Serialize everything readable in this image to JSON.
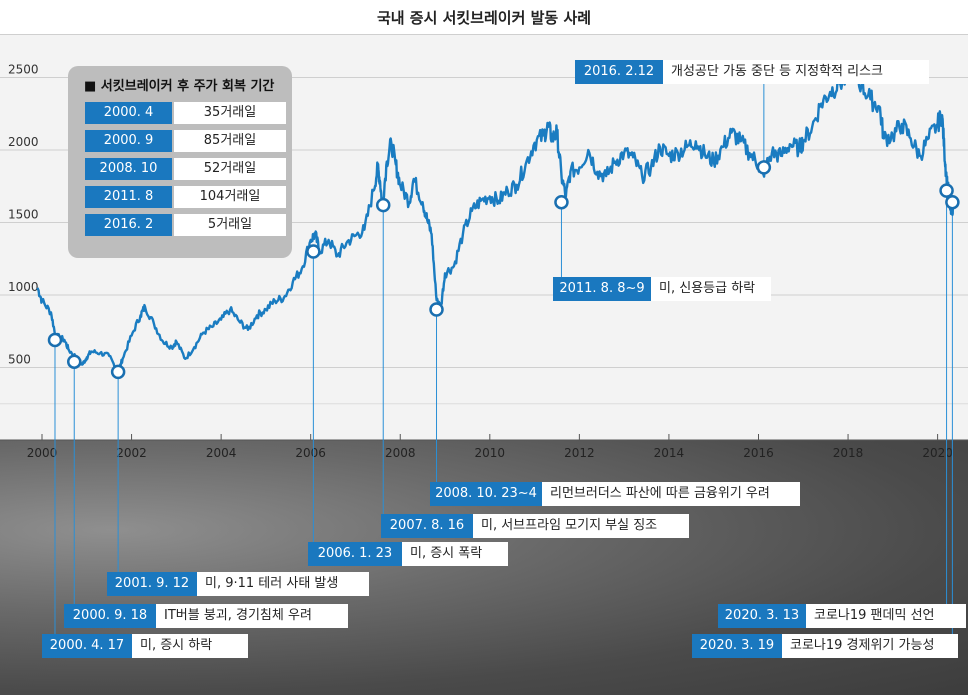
{
  "header": {
    "title": "국내 증시 서킷브레이커 발동 사례"
  },
  "recovery": {
    "title": "■ 서킷브레이커 후 주가 회복 기간",
    "rows": [
      {
        "date": "2000. 4",
        "days": "35거래일"
      },
      {
        "date": "2000. 9",
        "days": "85거래일"
      },
      {
        "date": "2008. 10",
        "days": "52거래일"
      },
      {
        "date": "2011. 8",
        "days": "104거래일"
      },
      {
        "date": "2016. 2",
        "days": "5거래일"
      }
    ]
  },
  "events": [
    {
      "date": "2016. 2.12",
      "desc": "개성공단 가동 중단 등 지정학적 리스크"
    },
    {
      "date": "2011. 8. 8~9",
      "desc": "미, 신용등급 하락"
    },
    {
      "date": "2008. 10. 23~4",
      "desc": "리먼브러더스 파산에 따른 금융위기 우려"
    },
    {
      "date": "2007. 8. 16",
      "desc": "미, 서브프라임 모기지 부실 징조"
    },
    {
      "date": "2006. 1. 23",
      "desc": "미, 증시 폭락"
    },
    {
      "date": "2001. 9. 12",
      "desc": "미, 9·11 테러 사태 발생"
    },
    {
      "date": "2000. 9. 18",
      "desc": "IT버블 붕괴, 경기침체 우려"
    },
    {
      "date": "2000. 4. 17",
      "desc": "미, 증시 하락"
    },
    {
      "date": "2020. 3. 13",
      "desc": "코로나19 팬데믹 선언"
    },
    {
      "date": "2020. 3. 19",
      "desc": "코로나19 경제위기 가능성"
    }
  ],
  "chart_data": {
    "type": "line",
    "title": "국내 증시 서킷브레이커 발동 사례",
    "xlabel": "",
    "ylabel": "",
    "xlim": [
      2000,
      2020.5
    ],
    "ylim": [
      0,
      2800
    ],
    "x_ticks": [
      "2000",
      "2002",
      "2004",
      "2006",
      "2008",
      "2010",
      "2012",
      "2014",
      "2016",
      "2018",
      "2020"
    ],
    "y_ticks": [
      "500",
      "1000",
      "1500",
      "2000",
      "2500"
    ],
    "grid": "horizontal",
    "series": [
      {
        "name": "",
        "color": "#1a7cc1",
        "points": [
          [
            1999.9,
            1050
          ],
          [
            2000.0,
            960
          ],
          [
            2000.2,
            880
          ],
          [
            2000.3,
            720
          ],
          [
            2000.5,
            690
          ],
          [
            2000.6,
            620
          ],
          [
            2000.8,
            560
          ],
          [
            2000.9,
            520
          ],
          [
            2001.0,
            570
          ],
          [
            2001.1,
            610
          ],
          [
            2001.3,
            600
          ],
          [
            2001.5,
            580
          ],
          [
            2001.7,
            470
          ],
          [
            2001.8,
            560
          ],
          [
            2002.0,
            720
          ],
          [
            2002.2,
            860
          ],
          [
            2002.3,
            920
          ],
          [
            2002.5,
            800
          ],
          [
            2002.7,
            680
          ],
          [
            2002.9,
            640
          ],
          [
            2003.0,
            680
          ],
          [
            2003.2,
            560
          ],
          [
            2003.4,
            640
          ],
          [
            2003.6,
            740
          ],
          [
            2003.8,
            780
          ],
          [
            2004.0,
            830
          ],
          [
            2004.2,
            900
          ],
          [
            2004.4,
            820
          ],
          [
            2004.6,
            760
          ],
          [
            2004.8,
            860
          ],
          [
            2005.0,
            900
          ],
          [
            2005.2,
            960
          ],
          [
            2005.4,
            980
          ],
          [
            2005.6,
            1090
          ],
          [
            2005.8,
            1180
          ],
          [
            2006.0,
            1380
          ],
          [
            2006.1,
            1420
          ],
          [
            2006.2,
            1300
          ],
          [
            2006.4,
            1380
          ],
          [
            2006.6,
            1270
          ],
          [
            2006.8,
            1360
          ],
          [
            2007.0,
            1410
          ],
          [
            2007.2,
            1450
          ],
          [
            2007.4,
            1720
          ],
          [
            2007.5,
            1880
          ],
          [
            2007.55,
            1780
          ],
          [
            2007.6,
            1620
          ],
          [
            2007.7,
            1920
          ],
          [
            2007.8,
            2050
          ],
          [
            2007.9,
            1900
          ],
          [
            2008.0,
            1760
          ],
          [
            2008.2,
            1640
          ],
          [
            2008.3,
            1800
          ],
          [
            2008.5,
            1640
          ],
          [
            2008.6,
            1520
          ],
          [
            2008.7,
            1420
          ],
          [
            2008.8,
            1000
          ],
          [
            2008.9,
            900
          ],
          [
            2009.0,
            1150
          ],
          [
            2009.2,
            1200
          ],
          [
            2009.4,
            1420
          ],
          [
            2009.6,
            1580
          ],
          [
            2009.8,
            1650
          ],
          [
            2010.0,
            1680
          ],
          [
            2010.2,
            1650
          ],
          [
            2010.4,
            1720
          ],
          [
            2010.6,
            1760
          ],
          [
            2010.8,
            1900
          ],
          [
            2011.0,
            2050
          ],
          [
            2011.2,
            2100
          ],
          [
            2011.3,
            2160
          ],
          [
            2011.4,
            2080
          ],
          [
            2011.5,
            2120
          ],
          [
            2011.6,
            1820
          ],
          [
            2011.7,
            1680
          ],
          [
            2011.8,
            1850
          ],
          [
            2012.0,
            1880
          ],
          [
            2012.2,
            2000
          ],
          [
            2012.4,
            1850
          ],
          [
            2012.6,
            1820
          ],
          [
            2012.8,
            1920
          ],
          [
            2013.0,
            1980
          ],
          [
            2013.2,
            1950
          ],
          [
            2013.4,
            1820
          ],
          [
            2013.6,
            1880
          ],
          [
            2013.8,
            2020
          ],
          [
            2014.0,
            1960
          ],
          [
            2014.2,
            1980
          ],
          [
            2014.4,
            2020
          ],
          [
            2014.6,
            2060
          ],
          [
            2014.8,
            1970
          ],
          [
            2015.0,
            1920
          ],
          [
            2015.2,
            2020
          ],
          [
            2015.4,
            2120
          ],
          [
            2015.6,
            2060
          ],
          [
            2015.8,
            1980
          ],
          [
            2016.0,
            1900
          ],
          [
            2016.1,
            1840
          ],
          [
            2016.3,
            1980
          ],
          [
            2016.5,
            1960
          ],
          [
            2016.7,
            2040
          ],
          [
            2016.9,
            2010
          ],
          [
            2017.0,
            2060
          ],
          [
            2017.2,
            2160
          ],
          [
            2017.4,
            2320
          ],
          [
            2017.6,
            2400
          ],
          [
            2017.8,
            2460
          ],
          [
            2018.0,
            2500
          ],
          [
            2018.1,
            2560
          ],
          [
            2018.3,
            2450
          ],
          [
            2018.5,
            2350
          ],
          [
            2018.7,
            2300
          ],
          [
            2018.8,
            2080
          ],
          [
            2019.0,
            2100
          ],
          [
            2019.2,
            2180
          ],
          [
            2019.4,
            2080
          ],
          [
            2019.6,
            1960
          ],
          [
            2019.8,
            2080
          ],
          [
            2020.0,
            2180
          ],
          [
            2020.1,
            2240
          ],
          [
            2020.15,
            2000
          ],
          [
            2020.2,
            1800
          ],
          [
            2020.25,
            1700
          ],
          [
            2020.3,
            1560
          ],
          [
            2020.35,
            1620
          ]
        ]
      }
    ],
    "markers": [
      {
        "x": 2000.29,
        "y": 690
      },
      {
        "x": 2000.72,
        "y": 540
      },
      {
        "x": 2001.7,
        "y": 470
      },
      {
        "x": 2006.06,
        "y": 1300
      },
      {
        "x": 2007.62,
        "y": 1620
      },
      {
        "x": 2008.81,
        "y": 900
      },
      {
        "x": 2011.6,
        "y": 1640
      },
      {
        "x": 2016.12,
        "y": 1880
      },
      {
        "x": 2020.2,
        "y": 1720
      },
      {
        "x": 2020.33,
        "y": 1640
      }
    ]
  }
}
